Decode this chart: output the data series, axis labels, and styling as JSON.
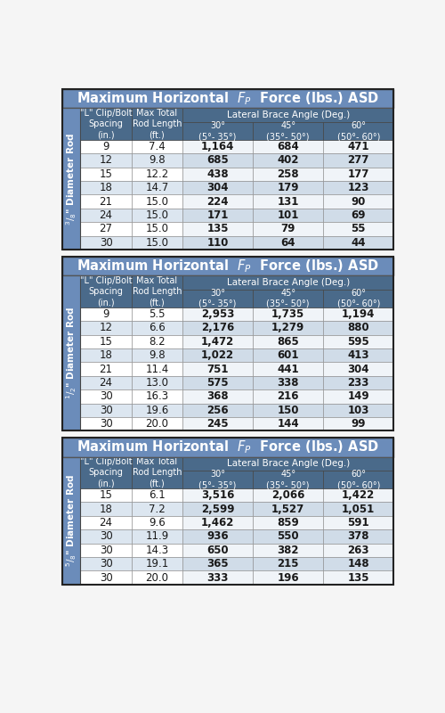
{
  "tables": [
    {
      "rod_label_top": "3/8",
      "rod_label_bottom": "Diameter Rod",
      "rod_sup": "3",
      "rod_sub": "8",
      "rows": [
        [
          "9",
          "7.4",
          "1,164",
          "684",
          "471"
        ],
        [
          "12",
          "9.8",
          "685",
          "402",
          "277"
        ],
        [
          "15",
          "12.2",
          "438",
          "258",
          "177"
        ],
        [
          "18",
          "14.7",
          "304",
          "179",
          "123"
        ],
        [
          "21",
          "15.0",
          "224",
          "131",
          "90"
        ],
        [
          "24",
          "15.0",
          "171",
          "101",
          "69"
        ],
        [
          "27",
          "15.0",
          "135",
          "79",
          "55"
        ],
        [
          "30",
          "15.0",
          "110",
          "64",
          "44"
        ]
      ]
    },
    {
      "rod_label_top": "1/2",
      "rod_label_bottom": "Diameter Rod",
      "rod_sup": "1",
      "rod_sub": "2",
      "rows": [
        [
          "9",
          "5.5",
          "2,953",
          "1,735",
          "1,194"
        ],
        [
          "12",
          "6.6",
          "2,176",
          "1,279",
          "880"
        ],
        [
          "15",
          "8.2",
          "1,472",
          "865",
          "595"
        ],
        [
          "18",
          "9.8",
          "1,022",
          "601",
          "413"
        ],
        [
          "21",
          "11.4",
          "751",
          "441",
          "304"
        ],
        [
          "24",
          "13.0",
          "575",
          "338",
          "233"
        ],
        [
          "30",
          "16.3",
          "368",
          "216",
          "149"
        ],
        [
          "30",
          "19.6",
          "256",
          "150",
          "103"
        ],
        [
          "30",
          "20.0",
          "245",
          "144",
          "99"
        ]
      ]
    },
    {
      "rod_label_top": "5/8",
      "rod_label_bottom": "Diameter Rod",
      "rod_sup": "5",
      "rod_sub": "8",
      "rows": [
        [
          "15",
          "6.1",
          "3,516",
          "2,066",
          "1,422"
        ],
        [
          "18",
          "7.2",
          "2,599",
          "1,527",
          "1,051"
        ],
        [
          "24",
          "9.6",
          "1,462",
          "859",
          "591"
        ],
        [
          "30",
          "11.9",
          "936",
          "550",
          "378"
        ],
        [
          "30",
          "14.3",
          "650",
          "382",
          "263"
        ],
        [
          "30",
          "19.1",
          "365",
          "215",
          "148"
        ],
        [
          "30",
          "20.0",
          "333",
          "196",
          "135"
        ]
      ]
    }
  ],
  "header_bg": "#6b8cba",
  "subheader_bg": "#4a6a8a",
  "sidebar_bg": "#6b8cba",
  "data_white": "#ffffff",
  "data_gray": "#dce6f0",
  "data_dark_white": "#f0f4f8",
  "data_dark_gray": "#d0dce8",
  "border_dark": "#2a2a2a",
  "border_light": "#888888",
  "text_white": "#ffffff",
  "text_dark": "#1a1a1a",
  "title_fontsize": 10.5,
  "header_fontsize": 7.0,
  "data_fontsize": 8.5,
  "sidebar_fontsize": 7.5
}
